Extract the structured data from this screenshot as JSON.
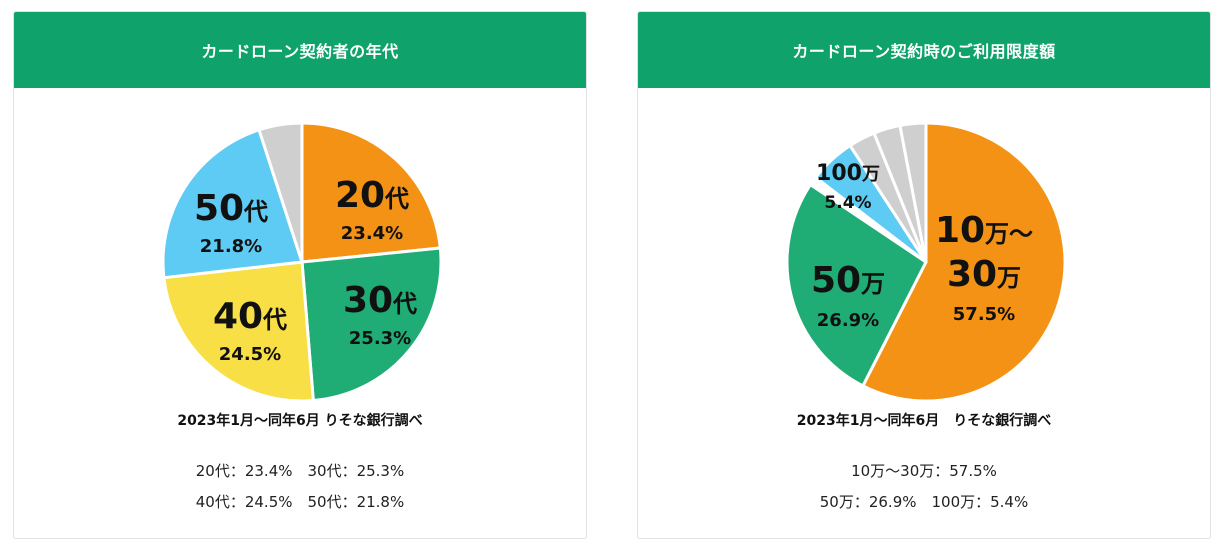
{
  "charts": [
    {
      "header": "カードローン契約者の年代",
      "caption": "2023年1月〜同年6月 りそな銀行調べ",
      "summary": [
        "20代：23.4%　30代：25.3%",
        "40代：24.5%　50代：21.8%"
      ]
    },
    {
      "header": "カードローン契約時のご利用限度額",
      "caption": "2023年1月〜同年6月　りそな銀行調べ",
      "summary": [
        "10万〜30万：57.5%",
        "50万：26.9%　100万：5.4%"
      ]
    }
  ],
  "colors": {
    "header_green": "#0fa36b",
    "orange": "#f39214",
    "green": "#20ac75",
    "yellow": "#f7df45",
    "blue": "#5ecbf4",
    "gray": "#cfcfcf"
  },
  "chart_data": [
    {
      "type": "pie",
      "slices": [
        {
          "label": "20代",
          "value": 23.4,
          "pct_label": "23.4%",
          "color": "#f39214"
        },
        {
          "label": "30代",
          "value": 25.3,
          "pct_label": "25.3%",
          "color": "#20ac75"
        },
        {
          "label": "40代",
          "value": 24.5,
          "pct_label": "24.5%",
          "color": "#f7df45"
        },
        {
          "label": "50代",
          "value": 21.8,
          "pct_label": "21.8%",
          "color": "#5ecbf4"
        },
        {
          "label": "",
          "value": 5.0,
          "pct_label": "",
          "color": "#cfcfcf"
        }
      ]
    },
    {
      "type": "pie",
      "slices": [
        {
          "label": "10万〜30万",
          "value": 57.5,
          "pct_label": "57.5%",
          "color": "#f39214"
        },
        {
          "label": "50万",
          "value": 26.9,
          "pct_label": "26.9%",
          "color": "#20ac75"
        },
        {
          "label": "",
          "value": 1.0,
          "pct_label": "",
          "color": "#ffffff"
        },
        {
          "label": "100万",
          "value": 5.4,
          "pct_label": "5.4%",
          "color": "#5ecbf4"
        },
        {
          "label": "",
          "value": 3.1,
          "pct_label": "",
          "color": "#cfcfcf"
        },
        {
          "label": "",
          "value": 3.1,
          "pct_label": "",
          "color": "#cfcfcf"
        },
        {
          "label": "",
          "value": 3.0,
          "pct_label": "",
          "color": "#cfcfcf"
        }
      ]
    }
  ]
}
